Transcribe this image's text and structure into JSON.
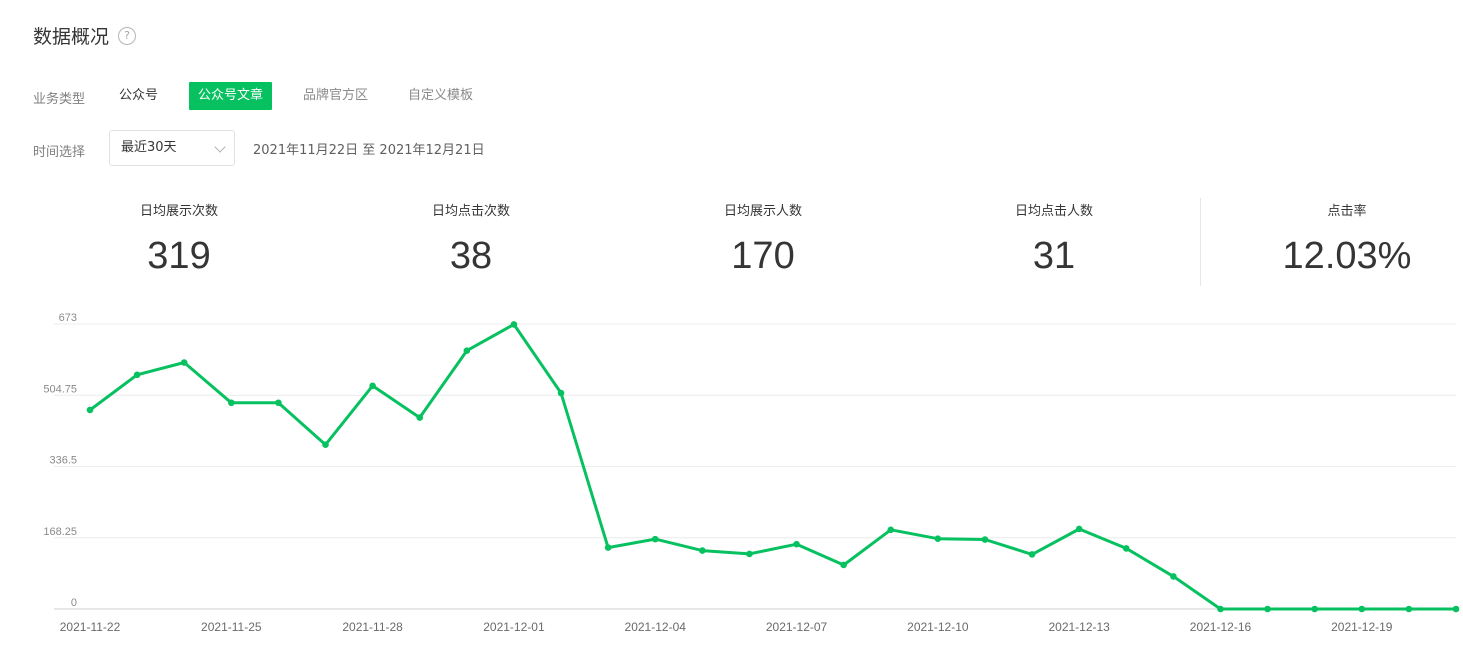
{
  "header": {
    "title": "数据概况",
    "help_icon": "?"
  },
  "business_type": {
    "label": "业务类型",
    "options": [
      "公众号",
      "公众号文章",
      "品牌官方区",
      "自定义模板"
    ],
    "selected": "公众号文章"
  },
  "time": {
    "label": "时间选择",
    "select_value": "最近30天",
    "range_text": "2021年11月22日 至 2021年12月21日"
  },
  "stats": [
    {
      "label": "日均展示次数",
      "value": "319"
    },
    {
      "label": "日均点击次数",
      "value": "38"
    },
    {
      "label": "日均展示人数",
      "value": "170"
    },
    {
      "label": "日均点击人数",
      "value": "31"
    },
    {
      "label": "点击率",
      "value": "12.03%"
    }
  ],
  "colors": {
    "accent": "#07c160"
  },
  "chart_data": {
    "type": "line",
    "x": [
      "2021-11-22",
      "2021-11-23",
      "2021-11-24",
      "2021-11-25",
      "2021-11-26",
      "2021-11-27",
      "2021-11-28",
      "2021-11-29",
      "2021-11-30",
      "2021-12-01",
      "2021-12-02",
      "2021-12-03",
      "2021-12-04",
      "2021-12-05",
      "2021-12-06",
      "2021-12-07",
      "2021-12-08",
      "2021-12-09",
      "2021-12-10",
      "2021-12-11",
      "2021-12-12",
      "2021-12-13",
      "2021-12-14",
      "2021-12-15",
      "2021-12-16",
      "2021-12-17",
      "2021-12-18",
      "2021-12-19",
      "2021-12-20",
      "2021-12-21"
    ],
    "x_tick_labels": [
      "2021-11-22",
      "2021-11-25",
      "2021-11-28",
      "2021-12-01",
      "2021-12-04",
      "2021-12-07",
      "2021-12-10",
      "2021-12-13",
      "2021-12-16",
      "2021-12-19"
    ],
    "series": [
      {
        "values": [
          470,
          553,
          582,
          487,
          487,
          388,
          527,
          452,
          610,
          672,
          510,
          145,
          165,
          138,
          130,
          153,
          104,
          187,
          166,
          164,
          129,
          189,
          143,
          77,
          0,
          0,
          0,
          0,
          0,
          0
        ]
      }
    ],
    "y_ticks": [
      "0",
      "168.25",
      "336.5",
      "504.75",
      "673"
    ],
    "ylim": [
      0,
      673
    ],
    "grid": true,
    "legend": "none"
  }
}
